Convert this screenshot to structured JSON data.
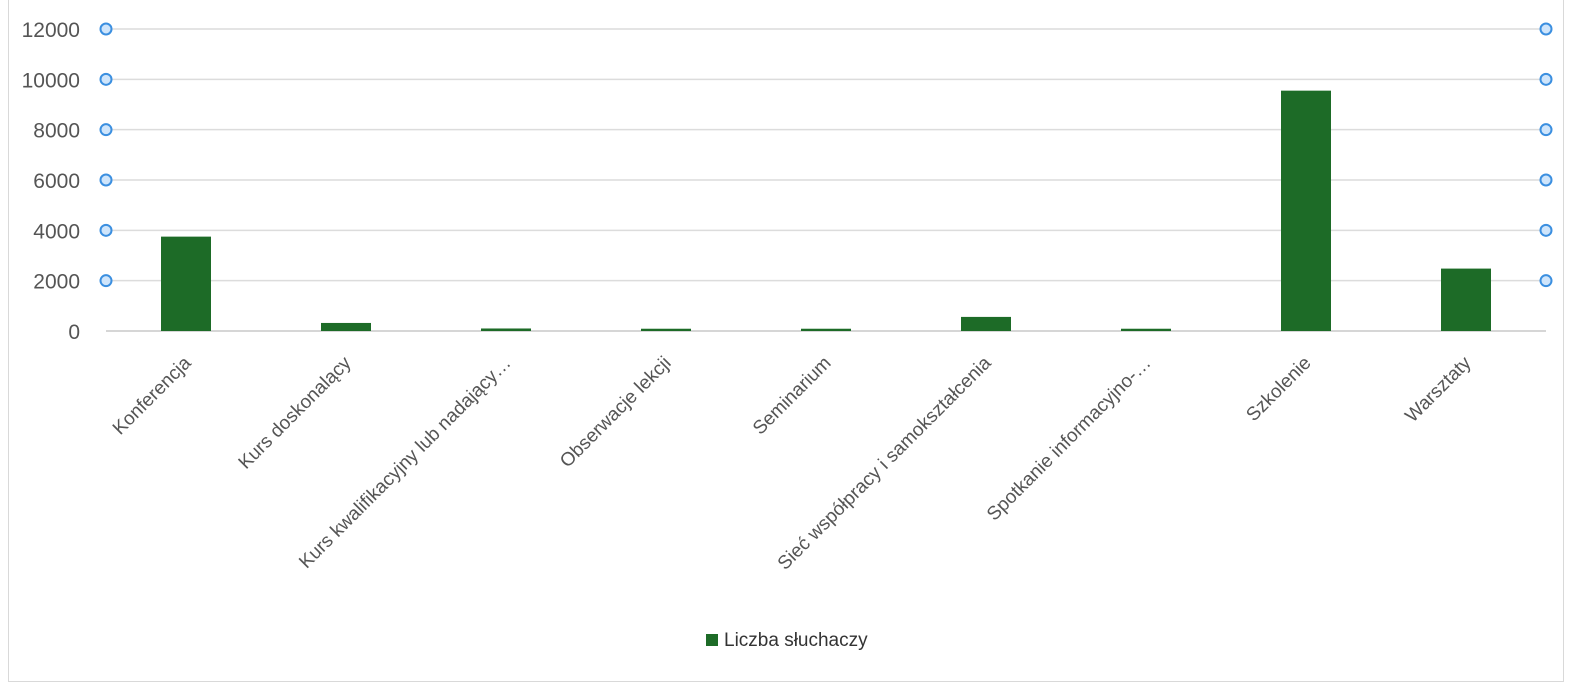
{
  "chart_data": {
    "type": "bar",
    "categories": [
      "Konferencja",
      "Kurs doskonalący",
      "Kurs kwalifikacyjny lub nadający…",
      "Obserwacje lekcji",
      "Seminarium",
      "Sieć współpracy i samokształcenia",
      "Spotkanie informacyjno-…",
      "Szkolenie",
      "Warsztaty"
    ],
    "series": [
      {
        "name": "Liczba słuchaczy",
        "values": [
          3750,
          320,
          100,
          90,
          90,
          560,
          90,
          9550,
          2480
        ],
        "color": "#1d6b27"
      }
    ],
    "yticks": [
      "0",
      "2000",
      "4000",
      "6000",
      "8000",
      "10000",
      "12000"
    ],
    "ylim": [
      0,
      12000
    ],
    "grid": true,
    "legend": "bottom-center",
    "handle_color": "#3b8fe0"
  }
}
